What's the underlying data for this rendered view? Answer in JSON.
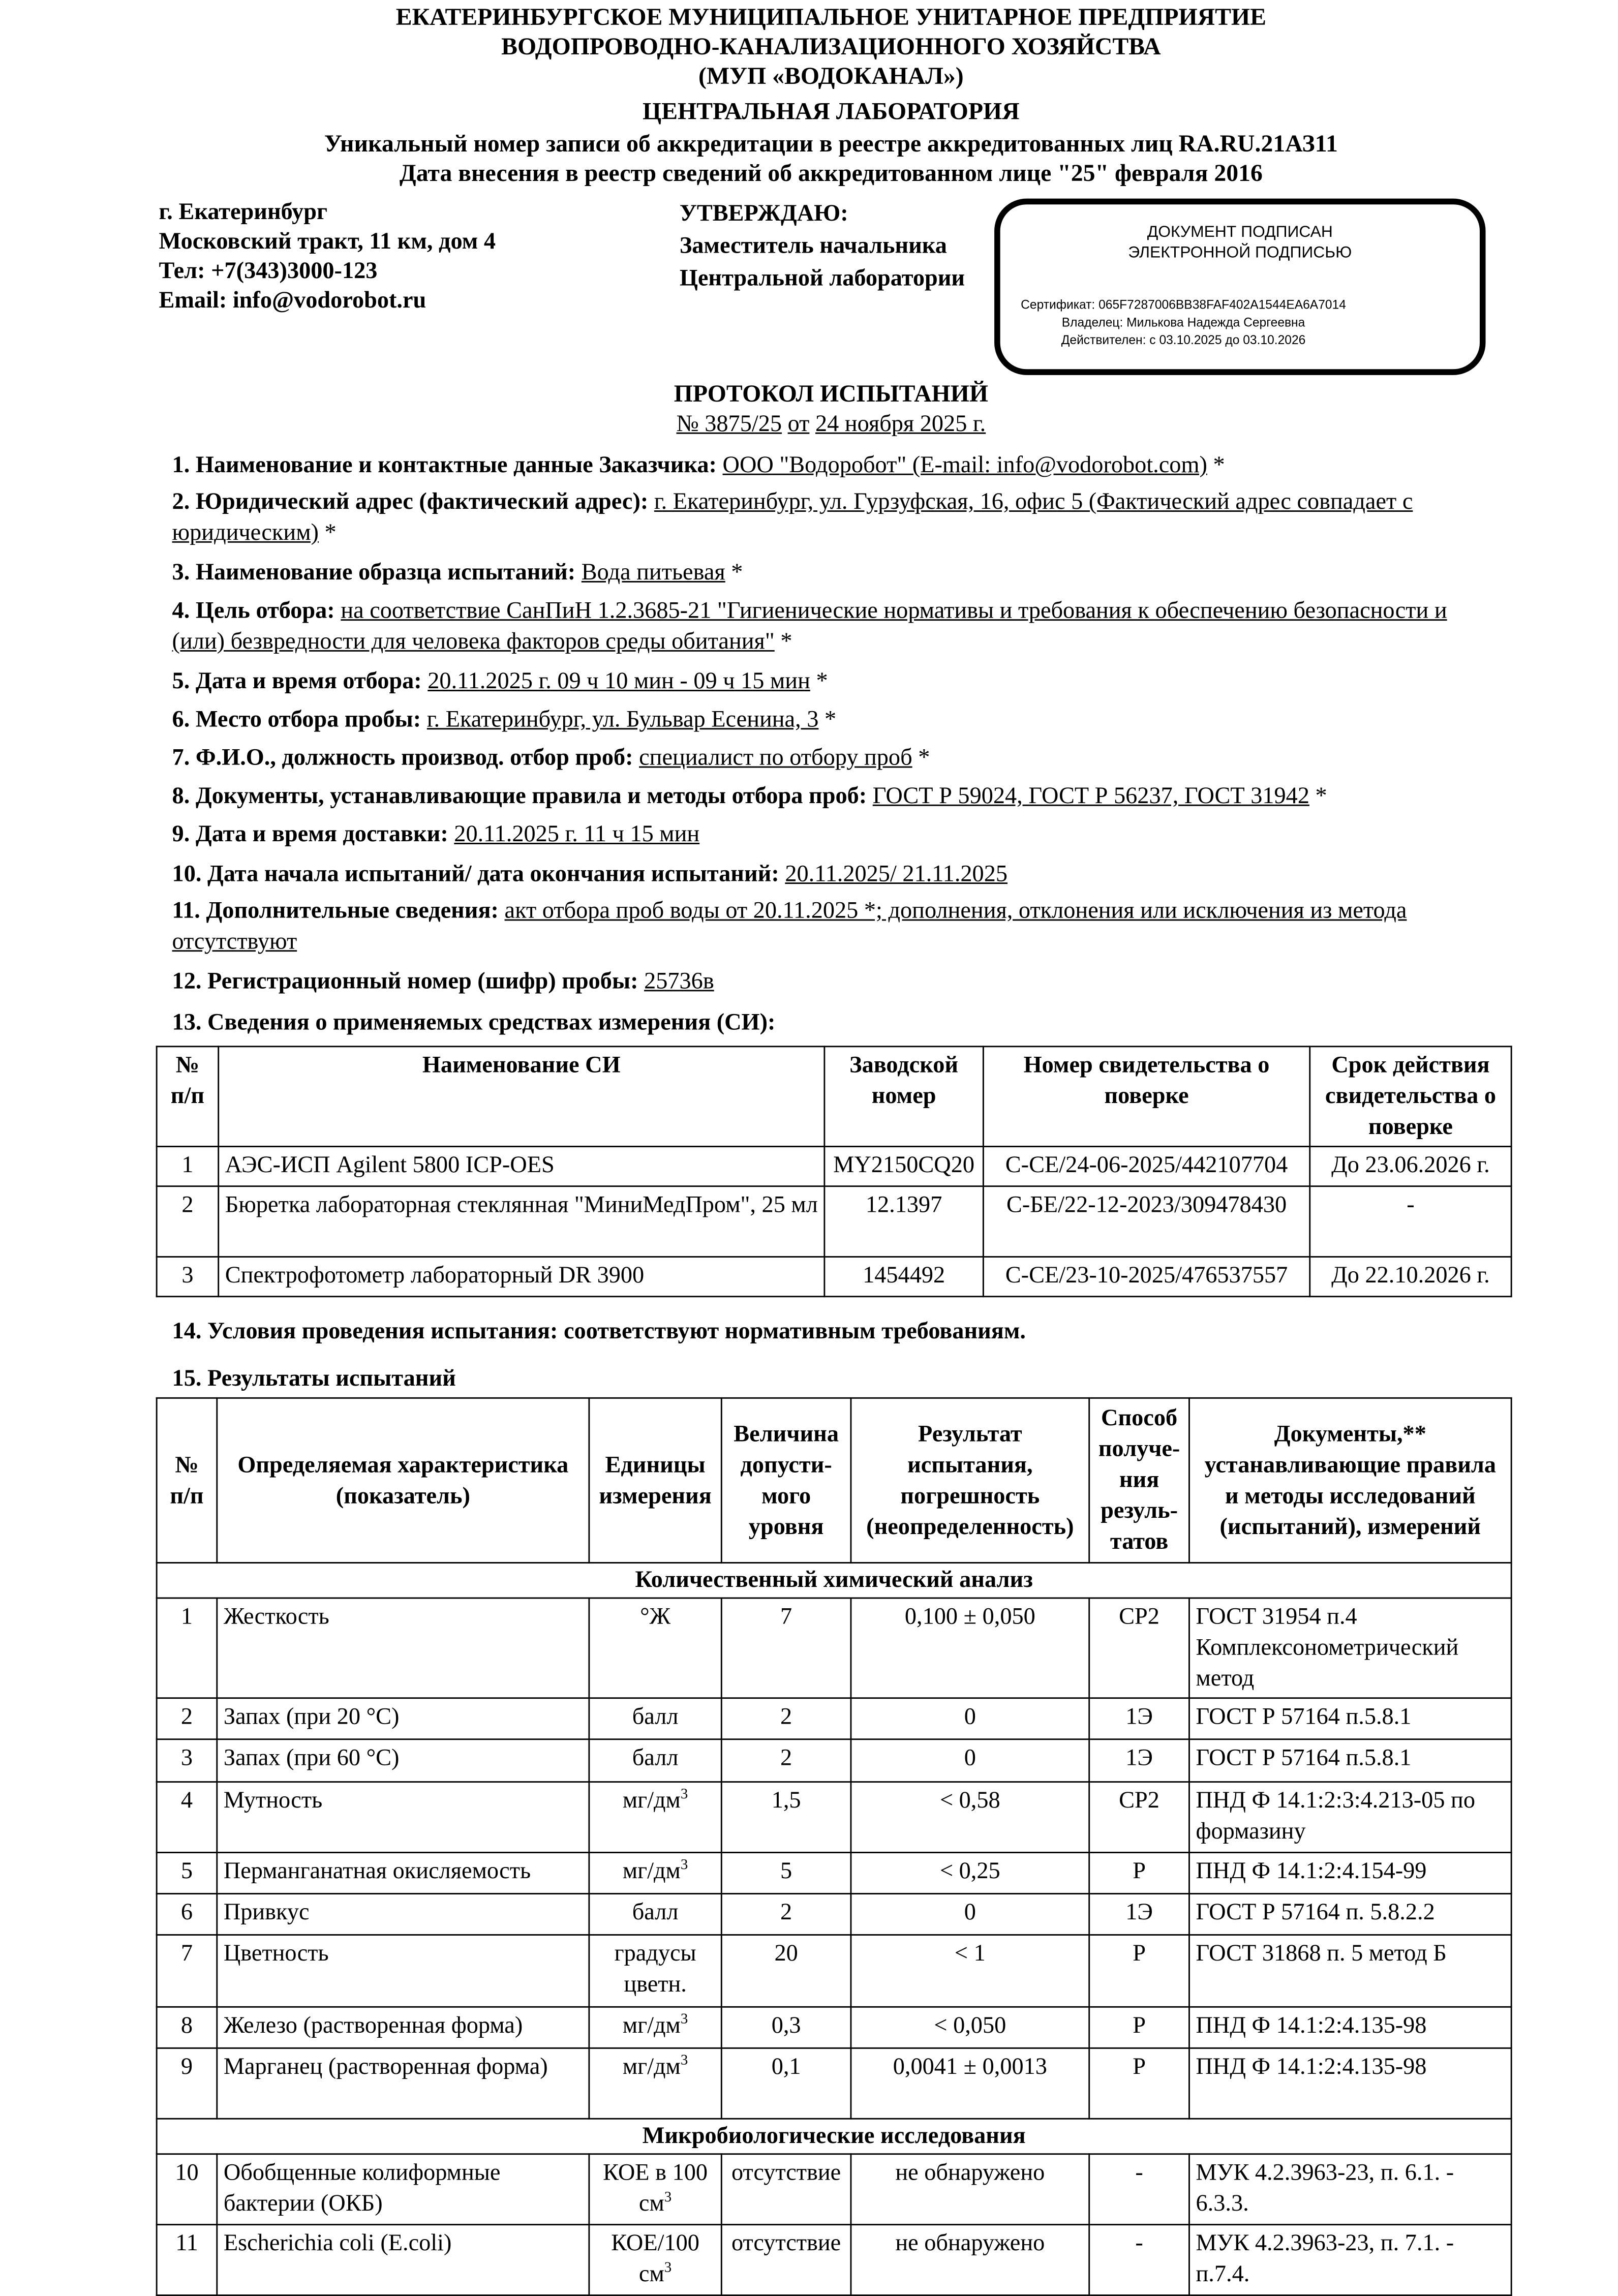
{
  "header": {
    "lines": [
      "ЕКАТЕРИНБУРГСКОЕ МУНИЦИПАЛЬНОЕ УНИТАРНОЕ ПРЕДПРИЯТИЕ",
      "ВОДОПРОВОДНО-КАНАЛИЗАЦИОННОГО ХОЗЯЙСТВА",
      "(МУП «ВОДОКАНАЛ»)",
      "ЦЕНТРАЛЬНАЯ ЛАБОРАТОРИЯ",
      "Уникальный номер записи об аккредитации в реестре аккредитованных лиц RA.RU.21АЗ11",
      "Дата внесения в реестр сведений об аккредитованном лице  \"25\" февраля 2016"
    ]
  },
  "address": [
    "г. Екатеринбург",
    "Московский тракт, 11 км, дом 4",
    "Тел: +7(343)3000-123",
    "Email: info@vodorobot.ru"
  ],
  "approve": [
    "УТВЕРЖДАЮ:",
    "Заместитель начальника",
    "Центральной лаборатории"
  ],
  "signature": {
    "title1": "ДОКУМЕНТ ПОДПИСАН",
    "title2": "ЭЛЕКТРОННОЙ ПОДПИСЬЮ",
    "cert": "Сертификат: 065F7287006BB38FAF402A1544EA6A7014",
    "owner": "Владелец: Милькова Надежда Сергеевна",
    "valid": "Действителен: с 03.10.2025 до 03.10.2026"
  },
  "protocol": {
    "title": "ПРОТОКОЛ ИСПЫТАНИЙ",
    "number": "№ 3875/25",
    "from": "от",
    "date": "24 ноября 2025 г."
  },
  "items": [
    {
      "label": "1. Наименование и контактные данные Заказчика:",
      "value": "ООО \"Водоробот\" (E-mail: info@vodorobot.com)",
      "suffix": " *"
    },
    {
      "label": "2. Юридический адрес (фактический адрес):",
      "value": "г. Екатеринбург, ул. Гурзуфская, 16, офис 5 (Фактический адрес совпадает с юридическим)",
      "suffix": " *"
    },
    {
      "label": "3. Наименование образца испытаний:",
      "value": "Вода питьевая",
      "suffix": " *"
    },
    {
      "label": "4. Цель отбора:",
      "value": "на соответствие СанПиН 1.2.3685-21 \"Гигиенические нормативы и требования к обеспечению безопасности и (или) безвредности для человека факторов среды обитания\"",
      "suffix": " *"
    },
    {
      "label": "5. Дата и время отбора:",
      "value": "20.11.2025 г. 09 ч 10 мин - 09 ч 15 мин",
      "suffix": " *"
    },
    {
      "label": "6. Место отбора пробы: ",
      "value": "г. Екатеринбург, ул. Бульвар Есенина, 3",
      "suffix": " *"
    },
    {
      "label": "7. Ф.И.О., должность производ. отбор проб:",
      "value": "специалист по отбору проб",
      "suffix": " *"
    },
    {
      "label": "8. Документы, устанавливающие правила и методы отбора проб: ",
      "value": "ГОСТ Р 59024, ГОСТ Р 56237, ГОСТ 31942",
      "suffix": " *"
    },
    {
      "label": "9. Дата  и время доставки:",
      "value": "20.11.2025 г. 11 ч 15 мин",
      "suffix": ""
    },
    {
      "label": "10. Дата начала испытаний/ дата окончания испытаний:",
      "value": "20.11.2025/ 21.11.2025",
      "suffix": ""
    },
    {
      "label": "11. Дополнительные сведения:",
      "value": "акт отбора проб воды от 20.11.2025 *; дополнения, отклонения или исключения из метода отсутствуют",
      "suffix": ""
    },
    {
      "label": "12. Регистрационный номер (шифр) пробы:",
      "value": "25736в",
      "suffix": ""
    },
    {
      "label": "13. Сведения о применяемых средствах измерения (СИ):",
      "value": "",
      "suffix": ""
    }
  ],
  "instruments": {
    "headers": [
      "№ п/п",
      "Наименование СИ",
      "Заводской номер",
      "Номер свидетельства о поверке",
      "Срок действия свидетельства о поверке"
    ],
    "rows": [
      [
        "1",
        "АЭС-ИСП Agilent 5800 ICP-OES",
        "MY2150CQ20",
        "С-СЕ/24-06-2025/442107704",
        "До 23.06.2026 г."
      ],
      [
        "2",
        "Бюретка лабораторная стеклянная \"МиниМедПром\", 25 мл",
        "12.1397",
        "С-БЕ/22-12-2023/309478430",
        "-"
      ],
      [
        "3",
        "Спектрофотометр лабораторный DR 3900",
        "1454492",
        "С-СЕ/23-10-2025/476537557",
        "До 22.10.2026 г."
      ]
    ]
  },
  "conditions": "14. Условия проведения испытания: соответствуют нормативным требованиям.",
  "results_title": "15. Результаты испытаний",
  "results": {
    "headers": [
      "№ п/п",
      "Определяемая характеристика (показатель)",
      "Единицы измерения",
      "Величина допусти-мого уровня",
      "Результат испытания, погрешность (неопределенность)",
      "Способ получе-ния резуль-татов",
      "Документы,** устанавливающие правила и методы исследований (испытаний), измерений"
    ],
    "sections": [
      {
        "title": "Количественный химический анализ",
        "rows": [
          [
            "1",
            "Жесткость",
            "°Ж",
            "",
            "7",
            "0,100 ± 0,050",
            "СР2",
            "ГОСТ 31954 п.4 Комплексонометрический метод"
          ],
          [
            "2",
            "Запах (при 20 °С)",
            "балл",
            "",
            "2",
            "0",
            "1Э",
            "ГОСТ Р 57164 п.5.8.1"
          ],
          [
            "3",
            "Запах (при 60 °С)",
            "балл",
            "",
            "2",
            "0",
            "1Э",
            "ГОСТ Р 57164 п.5.8.1"
          ],
          [
            "4",
            "Мутность",
            "мг/дм",
            "3",
            "1,5",
            "< 0,58",
            "СР2",
            "ПНД Ф 14.1:2:3:4.213-05 по формазину"
          ],
          [
            "5",
            "Перманганатная окисляемость",
            "мг/дм",
            "3",
            "5",
            "< 0,25",
            "Р",
            "ПНД Ф 14.1:2:4.154-99"
          ],
          [
            "6",
            "Привкус",
            "балл",
            "",
            "2",
            "0",
            "1Э",
            "ГОСТ Р 57164 п. 5.8.2.2"
          ],
          [
            "7",
            "Цветность",
            "градусы цветн.",
            "",
            "20",
            "< 1",
            "Р",
            "ГОСТ 31868 п. 5 метод Б"
          ],
          [
            "8",
            "Железо (растворенная форма)",
            "мг/дм",
            "3",
            "0,3",
            "< 0,050",
            "Р",
            "ПНД Ф 14.1:2:4.135-98"
          ],
          [
            "9",
            "Марганец (растворенная форма)",
            "мг/дм",
            "3",
            "0,1",
            "0,0041 ± 0,0013",
            "Р",
            "ПНД Ф 14.1:2:4.135-98"
          ]
        ]
      },
      {
        "title": "Микробиологические исследования",
        "rows": [
          [
            "10",
            "Обобщенные колиформные бактерии (ОКБ)",
            "КОЕ в 100 см",
            "3",
            "отсутствие",
            "не обнаружено",
            "-",
            "МУК 4.2.3963-23, п. 6.1. - 6.3.3."
          ],
          [
            "11",
            "Escherichia coli (E.coli)",
            "КОЕ/100 см",
            "3",
            "отсутствие",
            "не обнаружено",
            "-",
            "МУК 4.2.3963-23, п. 7.1. - п.7.4."
          ]
        ]
      }
    ]
  }
}
